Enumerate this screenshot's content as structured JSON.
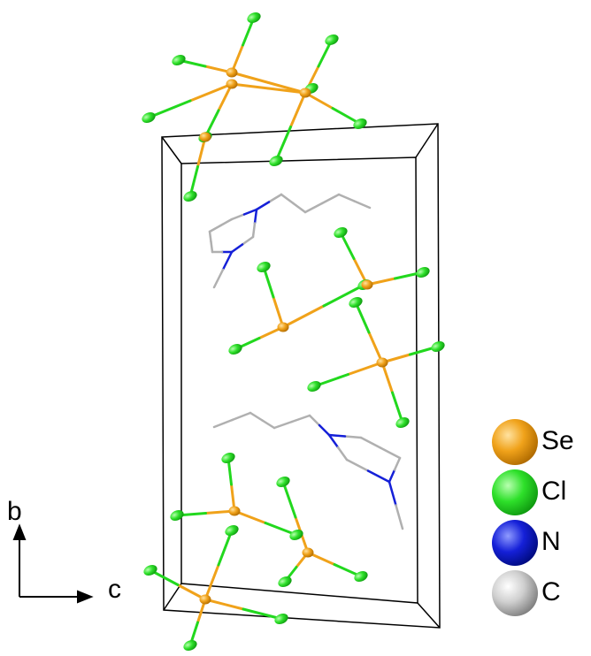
{
  "legend": {
    "items": [
      {
        "label": "Se"
      },
      {
        "label": "Cl"
      },
      {
        "label": "N"
      },
      {
        "label": "C"
      }
    ]
  },
  "axes": {
    "vertical": "b",
    "horizontal": "c"
  }
}
